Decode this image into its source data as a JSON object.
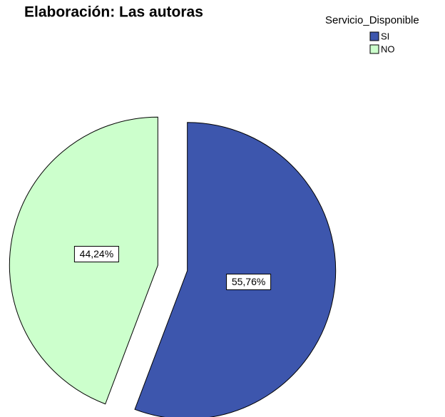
{
  "chart_data": {
    "type": "pie",
    "title": "Elaboración: Las autoras",
    "legend_title": "Servicio_Disponible",
    "categories": [
      "SI",
      "NO"
    ],
    "values": [
      55.76,
      44.24
    ],
    "value_labels": [
      "55,76%",
      "44,24%"
    ],
    "colors": [
      "#3d56ad",
      "#ccffcc"
    ],
    "legend": "top-right"
  }
}
